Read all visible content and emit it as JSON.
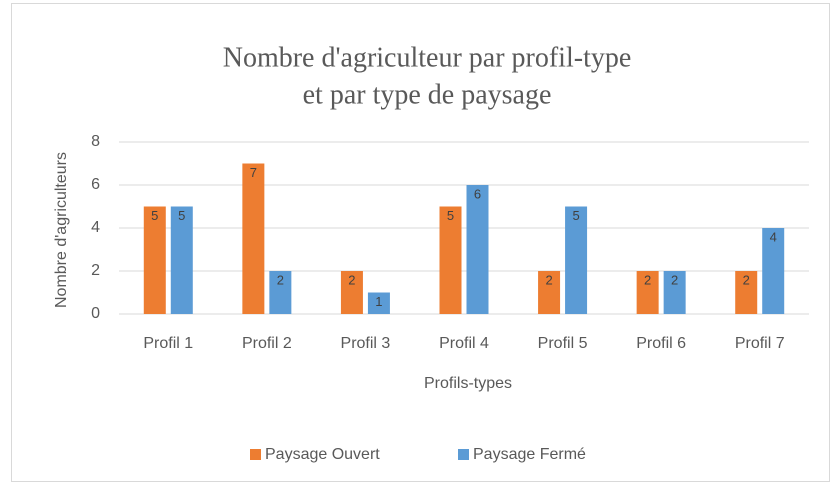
{
  "chart_data": {
    "type": "bar",
    "title": [
      "Nombre d'agriculteur par profil-type",
      "et par type de paysage"
    ],
    "x_label": "Profils-types",
    "y_label": "Nombre d'agriculteurs",
    "categories": [
      "Profil 1",
      "Profil 2",
      "Profil 3",
      "Profil 4",
      "Profil 5",
      "Profil 6",
      "Profil 7"
    ],
    "series": [
      {
        "name": "Paysage Ouvert",
        "color": "#ed7d31",
        "values": [
          5,
          7,
          2,
          5,
          2,
          2,
          2
        ]
      },
      {
        "name": "Paysage Fermé",
        "color": "#5b9bd5",
        "values": [
          5,
          2,
          1,
          6,
          5,
          2,
          4
        ]
      }
    ],
    "ylim": [
      0,
      8
    ],
    "yticks": [
      0,
      2,
      4,
      6,
      8
    ],
    "grid": true,
    "legend": "bottom"
  }
}
